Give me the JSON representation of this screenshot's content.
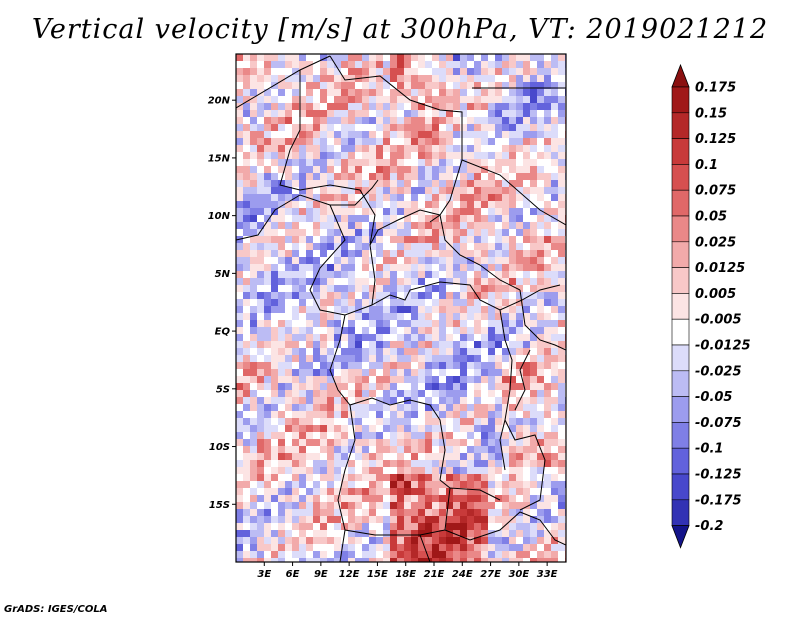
{
  "title": "Vertical velocity [m/s] at 300hPa, VT: 2019021212",
  "footer": "GrADS: IGES/COLA",
  "map": {
    "variable": "Vertical velocity",
    "units": "m/s",
    "level": "300hPa",
    "valid_time": "2019021212",
    "lon_range": [
      0,
      35
    ],
    "lat_range": [
      -20,
      24
    ],
    "lat_labels": [
      {
        "lat": 20,
        "text": "20N"
      },
      {
        "lat": 15,
        "text": "15N"
      },
      {
        "lat": 10,
        "text": "10N"
      },
      {
        "lat": 5,
        "text": "5N"
      },
      {
        "lat": 0,
        "text": "EQ"
      },
      {
        "lat": -5,
        "text": "5S"
      },
      {
        "lat": -10,
        "text": "10S"
      },
      {
        "lat": -15,
        "text": "15S"
      }
    ],
    "lon_labels": [
      {
        "lon": 3,
        "text": "3E"
      },
      {
        "lon": 6,
        "text": "6E"
      },
      {
        "lon": 9,
        "text": "9E"
      },
      {
        "lon": 12,
        "text": "12E"
      },
      {
        "lon": 15,
        "text": "15E"
      },
      {
        "lon": 18,
        "text": "18E"
      },
      {
        "lon": 21,
        "text": "21E"
      },
      {
        "lon": 24,
        "text": "24E"
      },
      {
        "lon": 27,
        "text": "27E"
      },
      {
        "lon": 30,
        "text": "30E"
      },
      {
        "lon": 33,
        "text": "33E"
      }
    ]
  },
  "colorbar": {
    "levels": [
      {
        "label": "0.175",
        "color": "#a01818"
      },
      {
        "label": "0.15",
        "color": "#b42828"
      },
      {
        "label": "0.125",
        "color": "#c83a3a"
      },
      {
        "label": "0.1",
        "color": "#d65050"
      },
      {
        "label": "0.075",
        "color": "#e06868"
      },
      {
        "label": "0.05",
        "color": "#ea8888"
      },
      {
        "label": "0.025",
        "color": "#f2aaaa"
      },
      {
        "label": "0.0125",
        "color": "#f8c8c8"
      },
      {
        "label": "0.005",
        "color": "#fce4e4"
      },
      {
        "label": "-0.005",
        "color": "#ffffff"
      },
      {
        "label": "-0.0125",
        "color": "#dcdcfa"
      },
      {
        "label": "-0.025",
        "color": "#bcbcf4"
      },
      {
        "label": "-0.05",
        "color": "#9c9cee"
      },
      {
        "label": "-0.075",
        "color": "#7f7fe6"
      },
      {
        "label": "-0.1",
        "color": "#6262dc"
      },
      {
        "label": "-0.125",
        "color": "#4848cc"
      },
      {
        "label": "-0.175",
        "color": "#3232b4"
      },
      {
        "label": "-0.2",
        "color": "#22229a"
      }
    ],
    "top_arrow_color": "#8a1010",
    "bottom_arrow_color": "#14148a"
  }
}
